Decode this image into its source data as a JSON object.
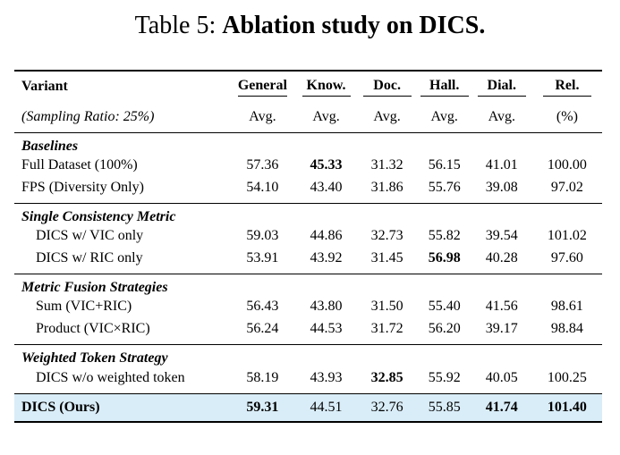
{
  "caption": {
    "label": "Table 5: ",
    "title": "Ablation study on DICS."
  },
  "header": {
    "variant": "Variant",
    "sampling": "(Sampling Ratio: 25%)",
    "columns": [
      {
        "name": "General",
        "sub": "Avg."
      },
      {
        "name": "Know.",
        "sub": "Avg."
      },
      {
        "name": "Doc.",
        "sub": "Avg."
      },
      {
        "name": "Hall.",
        "sub": "Avg."
      },
      {
        "name": "Dial.",
        "sub": "Avg."
      },
      {
        "name": "Rel.",
        "sub": "(%)"
      }
    ]
  },
  "groups": [
    {
      "title": "Baselines",
      "rows": [
        {
          "name": "Full Dataset (100%)",
          "values": [
            "57.36",
            "45.33",
            "31.32",
            "56.15",
            "41.01",
            "100.00"
          ]
        },
        {
          "name": "FPS (Diversity Only)",
          "values": [
            "54.10",
            "43.40",
            "31.86",
            "55.76",
            "39.08",
            "97.02"
          ]
        }
      ]
    },
    {
      "title": "Single Consistency Metric",
      "rows": [
        {
          "name": "DICS w/ VIC only",
          "values": [
            "59.03",
            "44.86",
            "32.73",
            "55.82",
            "39.54",
            "101.02"
          ]
        },
        {
          "name": "DICS w/ RIC only",
          "values": [
            "53.91",
            "43.92",
            "31.45",
            "56.98",
            "40.28",
            "97.60"
          ]
        }
      ]
    },
    {
      "title": "Metric Fusion Strategies",
      "rows": [
        {
          "name": "Sum (VIC+RIC)",
          "values": [
            "56.43",
            "43.80",
            "31.50",
            "55.40",
            "41.56",
            "98.61"
          ]
        },
        {
          "name": "Product (VIC×RIC)",
          "values": [
            "56.24",
            "44.53",
            "31.72",
            "56.20",
            "39.17",
            "98.84"
          ]
        }
      ]
    },
    {
      "title": "Weighted Token Strategy",
      "rows": [
        {
          "name": "DICS w/o weighted token",
          "values": [
            "58.19",
            "43.93",
            "32.85",
            "55.92",
            "40.05",
            "100.25"
          ]
        }
      ]
    }
  ],
  "ours": {
    "name": "DICS (Ours)",
    "values": [
      "59.31",
      "44.51",
      "32.76",
      "55.85",
      "41.74",
      "101.40"
    ]
  },
  "colors": {
    "highlight_row": "#d9edf8"
  }
}
